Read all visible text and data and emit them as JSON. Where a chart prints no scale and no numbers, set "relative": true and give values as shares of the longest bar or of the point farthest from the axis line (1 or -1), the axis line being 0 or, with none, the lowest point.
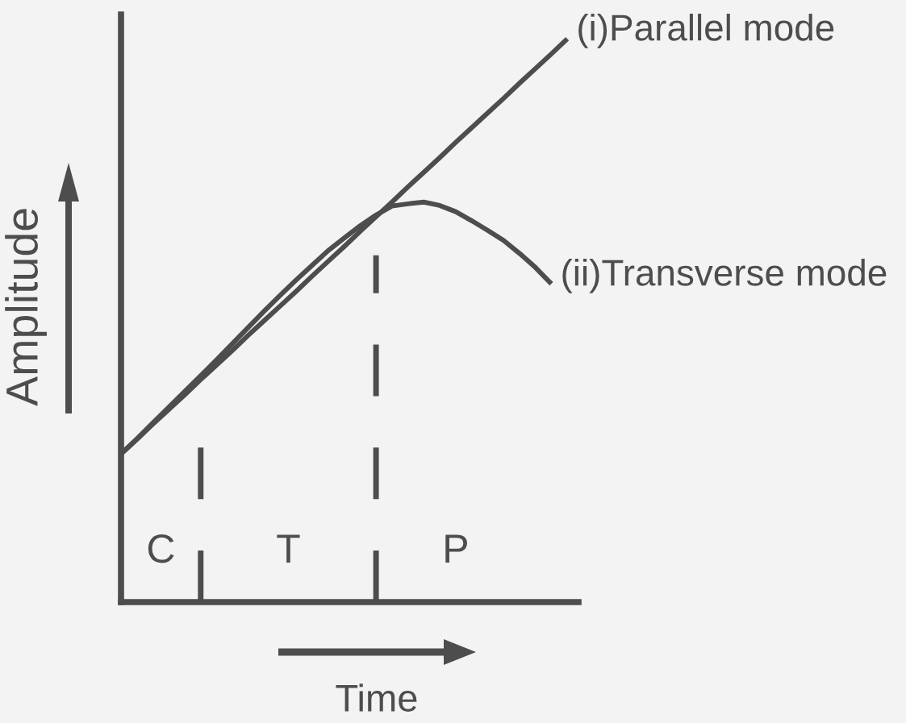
{
  "chart_data": {
    "type": "line",
    "relative": true,
    "xlabel": "Time",
    "ylabel": "Amplitude",
    "categories": [
      null,
      null,
      null,
      null,
      null,
      null,
      null,
      null,
      null,
      null,
      null,
      null,
      null,
      null,
      null,
      null,
      null,
      null,
      null,
      null,
      null,
      null,
      null,
      null,
      null,
      null,
      null,
      null,
      null
    ],
    "series": [
      {
        "name": "(i)Parallel mode",
        "color": "#4d4d4d",
        "values": [
          0.263,
          0.289,
          0.316,
          0.342,
          0.368,
          0.395,
          0.421,
          0.447,
          0.474,
          0.5,
          0.526,
          0.552,
          0.579,
          0.605,
          0.631,
          0.658,
          0.684,
          0.71,
          0.737,
          0.763,
          0.789,
          0.816,
          0.842,
          0.868,
          0.894,
          0.921,
          0.947,
          0.973,
          1.0
        ]
      },
      {
        "name": "(ii)Transverse mode",
        "color": "#4d4d4d",
        "values": [
          0.263,
          0.29,
          0.318,
          0.346,
          0.374,
          0.402,
          0.43,
          0.459,
          0.488,
          0.517,
          0.545,
          0.572,
          0.598,
          0.624,
          0.646,
          0.668,
          0.687,
          0.703,
          0.707,
          0.71,
          0.704,
          0.693,
          0.677,
          0.66,
          0.642,
          0.619,
          0.594,
          0.565,
          null
        ]
      }
    ],
    "annotations": [
      "C",
      "T",
      "P"
    ]
  }
}
